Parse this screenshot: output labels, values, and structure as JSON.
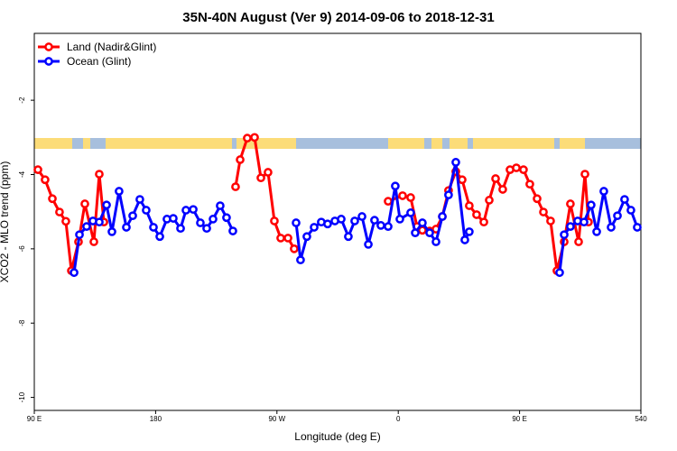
{
  "chart_data": {
    "type": "line",
    "title": "35N-40N August (Ver 9)   2014-09-06 to 2018-12-31",
    "x_label": "Longitude (deg E)",
    "y_label": "XCO2 - MLO trend (ppm)",
    "xlim": [
      90,
      540
    ],
    "xticks": [
      {
        "value": 90,
        "label": "90 E"
      },
      180,
      {
        "value": 270,
        "label": "90 W"
      },
      {
        "value": 360,
        "label": "0"
      },
      {
        "value": 450,
        "label": "90 E"
      },
      540
    ],
    "ylim": [
      -10.35,
      -0.2
    ],
    "yticks": [
      -2,
      -4,
      -6,
      -8,
      -10
    ],
    "legend": "top-left",
    "series": [
      {
        "name": "Land (Nadir&Glint)",
        "color": "#ff0000",
        "x": [
          92.7,
          98.0,
          103.4,
          108.7,
          113.4,
          117.5,
          122.8,
          127.5,
          134.2,
          138.2,
          141.6,
          null,
          239.3,
          242.7,
          248.0,
          253.4,
          258.1,
          263.4,
          268.1,
          272.8,
          278.2,
          282.8,
          null,
          352.5,
          363.2,
          369.2,
          373.9,
          377.9,
          383.3,
          388.0,
          392.7,
          397.3,
          402.7,
          407.4,
          412.7,
          418.1,
          423.5,
          427.5,
          432.2,
          437.5,
          442.9,
          447.6,
          452.9,
          457.6,
          463.0,
          467.7,
          473.0,
          477.7,
          483.1,
          487.7,
          493.8,
          498.5,
          501.1
        ],
        "values": [
          -3.87,
          -4.14,
          -4.65,
          -5.01,
          -5.26,
          -6.59,
          -5.81,
          -4.79,
          -5.81,
          -3.99,
          -5.28,
          null,
          -4.33,
          -3.6,
          -3.02,
          -3.0,
          -4.09,
          -3.94,
          -5.25,
          -5.71,
          -5.71,
          -6.0,
          null,
          -4.72,
          -4.57,
          -4.62,
          -5.4,
          -5.5,
          -5.52,
          -5.47,
          -5.13,
          -4.43,
          -3.92,
          -4.14,
          -4.84,
          -5.08,
          -5.28,
          -4.69,
          -4.11,
          -4.4,
          -3.87,
          -3.82,
          -3.87,
          -4.26,
          -4.65,
          -5.01,
          -5.25,
          -6.59,
          -5.81,
          -4.79,
          -5.81,
          -3.99,
          -5.28
        ]
      },
      {
        "name": "Ocean (Glint)",
        "color": "#0000ff",
        "x": [
          119.5,
          123.5,
          128.8,
          133.5,
          138.2,
          143.6,
          147.6,
          152.9,
          158.3,
          163.0,
          168.3,
          173.0,
          178.4,
          183.1,
          188.4,
          193.1,
          198.5,
          202.5,
          207.9,
          213.2,
          217.9,
          222.6,
          227.9,
          232.6,
          237.3,
          null,
          284.2,
          287.5,
          292.2,
          297.6,
          302.9,
          307.6,
          313.0,
          317.7,
          323.0,
          327.7,
          333.1,
          337.8,
          342.4,
          347.1,
          352.5,
          357.8,
          361.2,
          369.2,
          372.6,
          377.9,
          383.3,
          388.0,
          392.7,
          397.3,
          402.7,
          409.4,
          412.7,
          null,
          479.7,
          483.1,
          487.7,
          493.1,
          497.8,
          503.1,
          507.2,
          512.5,
          517.9,
          522.6,
          527.9,
          532.6,
          537.3
        ],
        "values": [
          -6.64,
          -5.62,
          -5.4,
          -5.25,
          -5.28,
          -4.82,
          -5.54,
          -4.45,
          -5.42,
          -5.11,
          -4.67,
          -4.96,
          -5.42,
          -5.67,
          -5.2,
          -5.18,
          -5.45,
          -4.96,
          -4.94,
          -5.3,
          -5.45,
          -5.2,
          -4.84,
          -5.16,
          -5.52,
          null,
          -5.3,
          -6.3,
          -5.67,
          -5.42,
          -5.28,
          -5.33,
          -5.25,
          -5.2,
          -5.67,
          -5.25,
          -5.13,
          -5.88,
          -5.23,
          -5.37,
          -5.4,
          -4.31,
          -5.2,
          -5.03,
          -5.57,
          -5.3,
          -5.57,
          -5.81,
          -5.13,
          -4.55,
          -3.67,
          -5.76,
          -5.54,
          null,
          -6.64,
          -5.62,
          -5.4,
          -5.25,
          -5.28,
          -4.82,
          -5.54,
          -4.45,
          -5.42,
          -5.11,
          -4.67,
          -4.96,
          -5.42
        ]
      }
    ]
  }
}
